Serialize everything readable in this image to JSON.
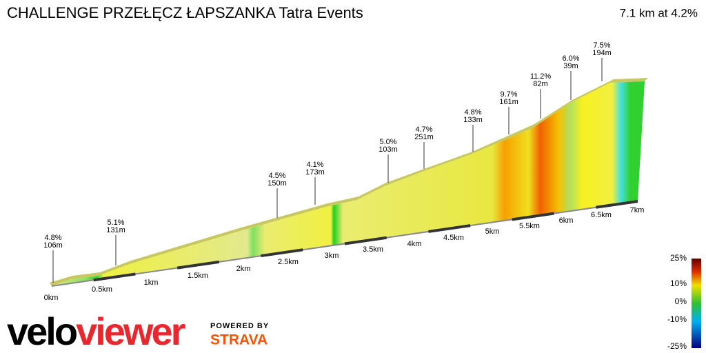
{
  "title": "CHALLENGE PRZEŁĘCZ ŁAPSZANKA Tatra Events",
  "summary": "7.1 km at 4.2%",
  "distance_labels": [
    "0km",
    "0.5km",
    "1km",
    "1.5km",
    "2km",
    "2.5km",
    "3km",
    "3.5km",
    "4km",
    "4.5km",
    "5km",
    "5.5km",
    "6km",
    "6.5km",
    "7km"
  ],
  "annotations": [
    {
      "grade": "4.8%",
      "length": "106m"
    },
    {
      "grade": "5.1%",
      "length": "131m"
    },
    {
      "grade": "4.5%",
      "length": "150m"
    },
    {
      "grade": "4.1%",
      "length": "173m"
    },
    {
      "grade": "5.0%",
      "length": "103m"
    },
    {
      "grade": "4.7%",
      "length": "251m"
    },
    {
      "grade": "4.8%",
      "length": "133m"
    },
    {
      "grade": "9.7%",
      "length": "161m"
    },
    {
      "grade": "11.2%",
      "length": "82m"
    },
    {
      "grade": "6.0%",
      "length": "39m"
    },
    {
      "grade": "7.5%",
      "length": "194m"
    }
  ],
  "legend": [
    "25%",
    "10%",
    "0%",
    "-10%",
    "-25%"
  ],
  "logo": {
    "left": "velo",
    "right": "viewer",
    "powered": "POWERED BY",
    "strava": "STRAVA"
  }
}
